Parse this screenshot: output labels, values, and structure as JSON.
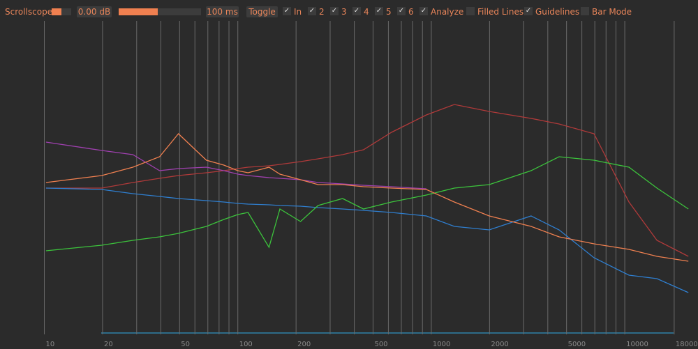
{
  "toolbar": {
    "title": "Scrollscope",
    "gain": "0.00 dB",
    "time": "100 ms",
    "button": "Toggle",
    "checkboxes": [
      {
        "label": "In",
        "checked": true
      },
      {
        "label": "2",
        "checked": true
      },
      {
        "label": "3",
        "checked": true
      },
      {
        "label": "4",
        "checked": true
      },
      {
        "label": "5",
        "checked": true
      },
      {
        "label": "6",
        "checked": true
      },
      {
        "label": "Analyze",
        "checked": true
      },
      {
        "label": "Filled Lines",
        "checked": false
      },
      {
        "label": "Guidelines",
        "checked": true
      },
      {
        "label": "Bar Mode",
        "checked": false
      }
    ]
  },
  "chart_data": {
    "type": "line",
    "log_x": true,
    "xlim": [
      5.9,
      23900
    ],
    "ylim": [
      -90,
      0
    ],
    "xticks": [
      10,
      20,
      50,
      100,
      200,
      500,
      1000,
      2000,
      5000,
      10000,
      18000
    ],
    "xgrid": [
      10,
      20,
      30,
      40,
      50,
      60,
      70,
      80,
      90,
      100,
      200,
      300,
      400,
      500,
      600,
      700,
      800,
      900,
      1000,
      2000,
      3000,
      4000,
      5000,
      6000,
      7000,
      8000,
      9000,
      10000,
      18000
    ],
    "x": [
      10.2,
      19.8,
      28.7,
      39.4,
      49.3,
      68.8,
      84.7,
      100,
      113,
      145,
      165,
      211,
      260,
      348,
      446,
      622,
      943,
      1315,
      1993,
      3281,
      4576,
      6935,
      10510,
      14660,
      21310
    ],
    "series": [
      {
        "color": "#b03a3a",
        "values": [
          -48,
          -48,
          -46.4,
          -45.2,
          -44.4,
          -43.6,
          -43,
          -42.4,
          -42,
          -41.6,
          -41.2,
          -40.4,
          -39.6,
          -38.4,
          -37,
          -32,
          -27,
          -24,
          -26,
          -28,
          -29.6,
          -32.4,
          -52,
          -63,
          -67.6
        ]
      },
      {
        "color": "#2f7fd0",
        "values": [
          -48,
          -48.4,
          -49.6,
          -50.4,
          -51,
          -51.6,
          -52,
          -52.4,
          -52.6,
          -52.8,
          -53,
          -53.2,
          -53.6,
          -54,
          -54.4,
          -55,
          -56,
          -59,
          -60,
          -56,
          -60,
          -68,
          -73,
          -74,
          -78
        ]
      },
      {
        "color": "#3cc43c",
        "values": [
          -66,
          -64.4,
          -63,
          -62,
          -61,
          -59,
          -57,
          -55.6,
          -55,
          -65,
          -54,
          -57.6,
          -53,
          -51,
          -54,
          -52,
          -50,
          -48,
          -47,
          -43,
          -39,
          -40,
          -42,
          -48,
          -54
        ]
      },
      {
        "color": "#a040b0",
        "values": [
          -34.8,
          -37.2,
          -38.4,
          -43,
          -42.4,
          -42,
          -43,
          -44,
          -44.4,
          -45,
          -45.2,
          -45.6,
          -46.4,
          -46.8,
          -47.2,
          -47.6,
          -48.2,
          null,
          null,
          null,
          null,
          null,
          null,
          null,
          null
        ]
      },
      {
        "color": "#f08050",
        "values": [
          -46.4,
          -44.4,
          -42,
          -39,
          -32.4,
          -40,
          -41.4,
          -43,
          -43.6,
          -42,
          -44,
          -45.6,
          -47,
          -47,
          -47.6,
          -48,
          -48.4,
          -52,
          -56,
          -59,
          -62,
          -64,
          -65.6,
          -67.6,
          -69
        ]
      }
    ]
  }
}
